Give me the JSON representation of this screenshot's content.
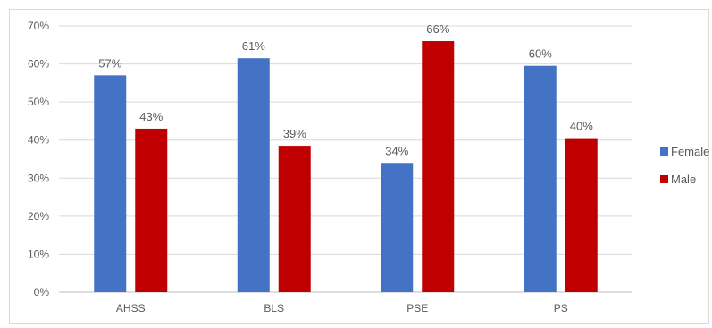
{
  "chart_data": {
    "type": "bar",
    "categories": [
      "AHSS",
      "BLS",
      "PSE",
      "PS"
    ],
    "series": [
      {
        "name": "Female",
        "values": [
          0.57,
          0.615,
          0.34,
          0.595
        ],
        "labels": [
          "57%",
          "61%",
          "34%",
          "60%"
        ],
        "color": "#4472c4"
      },
      {
        "name": "Male",
        "values": [
          0.43,
          0.385,
          0.66,
          0.405
        ],
        "labels": [
          "43%",
          "39%",
          "66%",
          "40%"
        ],
        "color": "#c00000"
      }
    ],
    "y_ticks": [
      "0%",
      "10%",
      "20%",
      "30%",
      "40%",
      "50%",
      "60%",
      "70%"
    ],
    "ylim": [
      0,
      0.7
    ],
    "grid": true,
    "legend_position": "right",
    "title": "",
    "xlabel": "",
    "ylabel": ""
  }
}
